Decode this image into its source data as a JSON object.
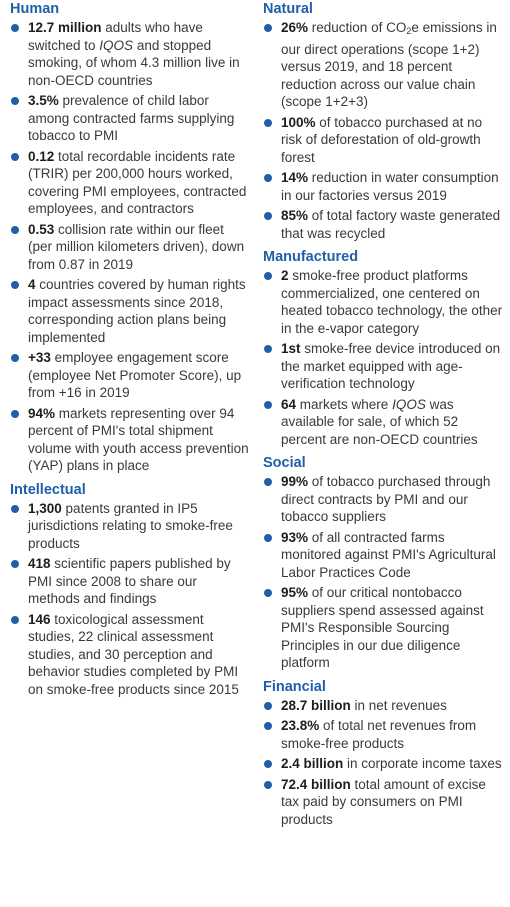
{
  "left": {
    "human": {
      "heading": "Human",
      "items": [
        {
          "lead": "12.7 million",
          "a": " adults who have switched to ",
          "b": "IQOS",
          "c": " and stopped smoking, of whom 4.3 million live in non-OECD countries"
        },
        {
          "lead": "3.5%",
          "a": " prevalence of child labor among contracted farms supplying tobacco to PMI"
        },
        {
          "lead": "0.12",
          "a": " total recordable incidents rate (TRIR) per 200,000 hours worked, covering PMI employees, contracted employees, and contractors"
        },
        {
          "lead": "0.53",
          "a": " collision rate within our fleet (per million kilometers driven), down from 0.87 in 2019"
        },
        {
          "lead": "4",
          "a": " countries covered by human rights impact assessments since 2018, corresponding action plans being implemented"
        },
        {
          "lead": "+33",
          "a": " employee engagement score (employee Net Promoter Score), up from +16 in 2019"
        },
        {
          "lead": "94%",
          "a": " markets representing over 94 percent of PMI's total shipment volume with youth access prevention (YAP) plans in place"
        }
      ]
    },
    "intellectual": {
      "heading": "Intellectual",
      "items": [
        {
          "lead": "1,300",
          "a": " patents granted in IP5 jurisdictions relating to smoke-free products"
        },
        {
          "lead": "418",
          "a": " scientific papers published by PMI since 2008 to share our methods and findings"
        },
        {
          "lead": "146",
          "a": " toxicological assessment studies, 22 clinical assessment studies, and 30 perception and behavior studies completed by PMI on smoke-free products since 2015"
        }
      ]
    }
  },
  "right": {
    "natural": {
      "heading": "Natural",
      "items": [
        {
          "lead": "26%",
          "a": " reduction of CO",
          "sub": "2",
          "c": "e emissions in our direct operations (scope 1+2) versus 2019, and 18 percent reduction across our value chain (scope 1+2+3)"
        },
        {
          "lead": "100%",
          "a": " of tobacco purchased at no risk of deforestation of old-growth forest"
        },
        {
          "lead": "14%",
          "a": " reduction in water consumption in our factories versus 2019"
        },
        {
          "lead": "85%",
          "a": " of total factory waste generated that was recycled"
        }
      ]
    },
    "manufactured": {
      "heading": "Manufactured",
      "items": [
        {
          "lead": "2",
          "a": " smoke-free product platforms commercialized, one centered on heated tobacco technology, the other in the e-vapor category"
        },
        {
          "lead": "1st",
          "a": " smoke-free device introduced on the market equipped with age-verification technology"
        },
        {
          "lead": "64",
          "a": " markets where ",
          "b": "IQOS",
          "c": " was available for sale, of which 52 percent are non-OECD countries"
        }
      ]
    },
    "social": {
      "heading": "Social",
      "items": [
        {
          "lead": "99%",
          "a": " of tobacco purchased through direct contracts by PMI and our tobacco suppliers"
        },
        {
          "lead": "93%",
          "a": " of all contracted farms monitored against PMI's Agricultural Labor Practices Code"
        },
        {
          "lead": "95%",
          "a": " of our critical nontobacco suppliers spend assessed against PMI's Responsible Sourcing Principles in our due diligence platform"
        }
      ]
    },
    "financial": {
      "heading": "Financial",
      "items": [
        {
          "lead": "28.7 billion",
          "a": " in net revenues"
        },
        {
          "lead": "23.8%",
          "a": " of total net revenues from smoke-free products"
        },
        {
          "lead": "2.4 billion",
          "a": " in corporate income taxes"
        },
        {
          "lead": "72.4 billion",
          "a": " total amount of excise tax paid by consumers on PMI products"
        }
      ]
    }
  },
  "colors": {
    "accent": "#1f5fa8",
    "text": "#3a3a3a"
  },
  "icons": {
    "bullet": "bullet-dot-icon"
  }
}
